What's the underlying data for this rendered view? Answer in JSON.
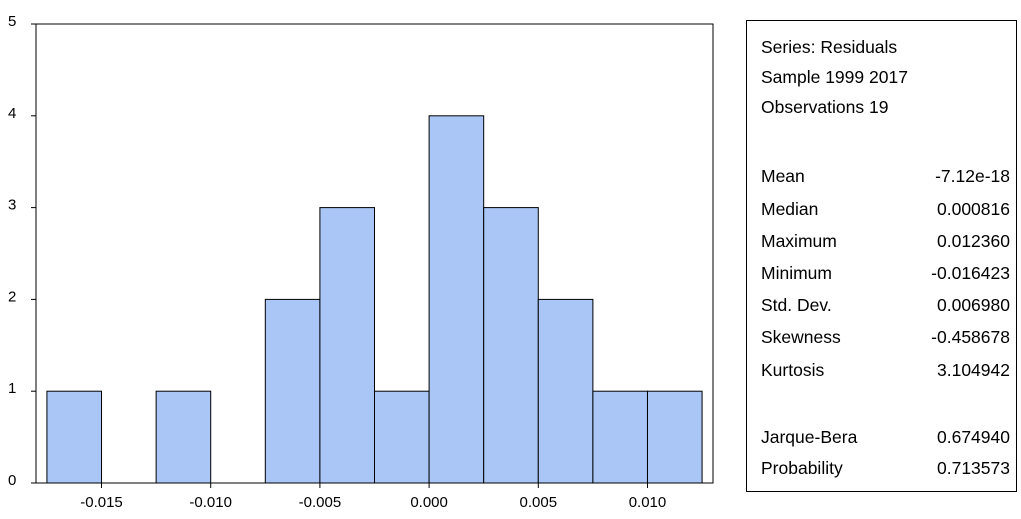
{
  "chart_data": {
    "type": "bar",
    "bin_edges": [
      -0.0175,
      -0.015,
      -0.0125,
      -0.01,
      -0.0075,
      -0.005,
      -0.0025,
      0.0,
      0.0025,
      0.005,
      0.0075,
      0.01,
      0.0125
    ],
    "values": [
      1,
      0,
      1,
      0,
      2,
      3,
      1,
      4,
      3,
      2,
      1,
      1
    ],
    "xlim": [
      -0.018,
      0.013
    ],
    "ylim": [
      0,
      5
    ],
    "x_ticks": [
      {
        "value": -0.015,
        "label": "-0.015"
      },
      {
        "value": -0.01,
        "label": "-0.010"
      },
      {
        "value": -0.005,
        "label": "-0.005"
      },
      {
        "value": 0.0,
        "label": "0.000"
      },
      {
        "value": 0.005,
        "label": "0.005"
      },
      {
        "value": 0.01,
        "label": "0.010"
      }
    ],
    "y_ticks": [
      {
        "value": 0,
        "label": "0"
      },
      {
        "value": 1,
        "label": "1"
      },
      {
        "value": 2,
        "label": "2"
      },
      {
        "value": 3,
        "label": "3"
      },
      {
        "value": 4,
        "label": "4"
      },
      {
        "value": 5,
        "label": "5"
      }
    ],
    "bar_color": "#a9c6f6",
    "title": "",
    "xlabel": "",
    "ylabel": "",
    "grid": false
  },
  "stats": {
    "header": [
      "Series: Residuals",
      "Sample 1999 2017",
      "Observations 19"
    ],
    "rows": [
      {
        "name": "Mean",
        "value": "-7.12e-18"
      },
      {
        "name": "Median",
        "value": "0.000816"
      },
      {
        "name": "Maximum",
        "value": "0.012360"
      },
      {
        "name": "Minimum",
        "value": "-0.016423"
      },
      {
        "name": "Std. Dev.",
        "value": "0.006980"
      },
      {
        "name": "Skewness",
        "value": "-0.458678"
      },
      {
        "name": "Kurtosis",
        "value": "3.104942"
      }
    ],
    "tests": [
      {
        "name": "Jarque-Bera",
        "value": "0.674940"
      },
      {
        "name": "Probability",
        "value": "0.713573"
      }
    ]
  }
}
